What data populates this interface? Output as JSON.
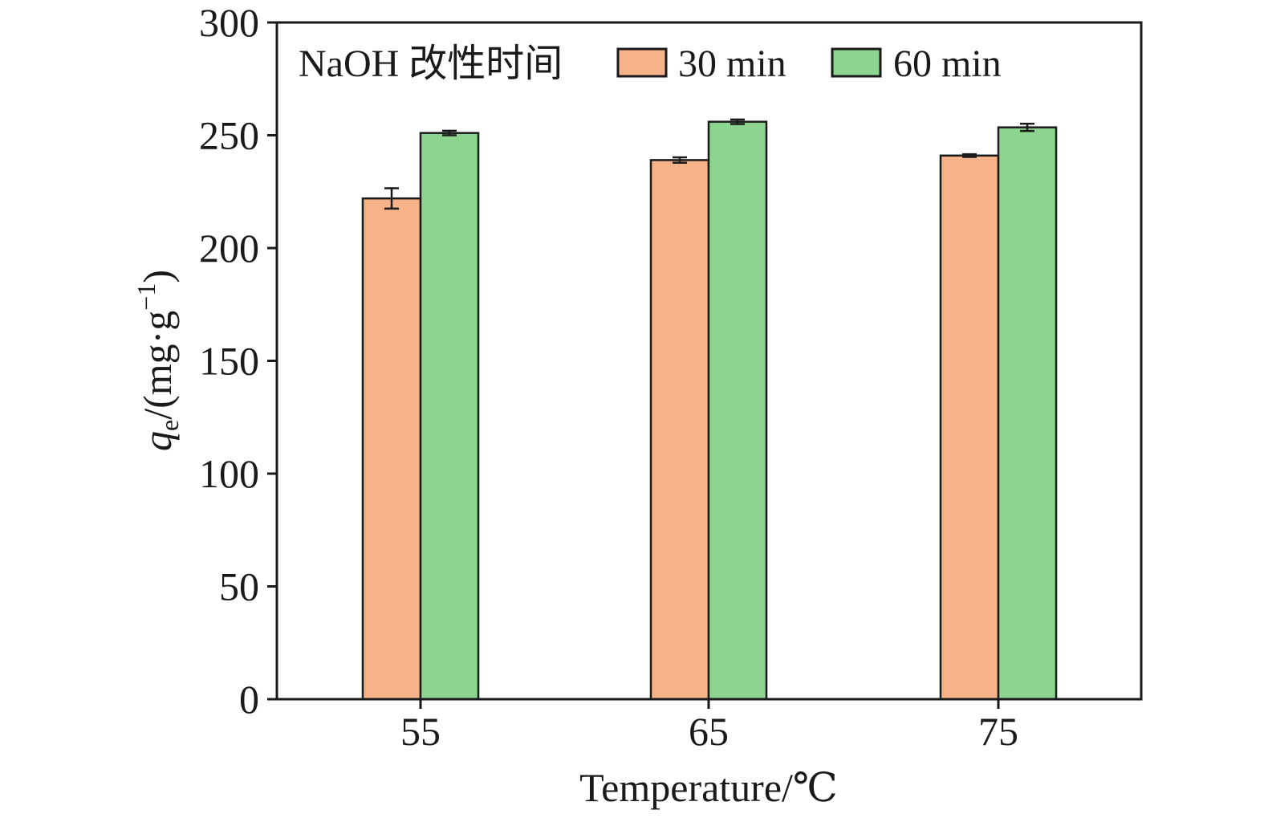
{
  "chart_data": {
    "type": "bar",
    "categories": [
      "55",
      "65",
      "75"
    ],
    "series": [
      {
        "name": "30 min",
        "color": "#F6B389",
        "values": [
          222,
          239,
          241
        ],
        "errors": [
          4.5,
          1.2,
          0.6
        ]
      },
      {
        "name": "60 min",
        "color": "#8DD48E",
        "values": [
          251,
          256,
          253.5
        ],
        "errors": [
          1,
          1,
          1.6
        ]
      }
    ],
    "xlabel": "Temperature/℃",
    "ylabel": {
      "symbol": "q",
      "subscript": "e",
      "unit_open": "/(mg·g",
      "unit_sup": "−1",
      "unit_close": ")"
    },
    "ylim": [
      0,
      300
    ],
    "yticks": [
      "0",
      "50",
      "100",
      "150",
      "200",
      "250",
      "300"
    ],
    "legend": {
      "title": "NaOH 改性时间",
      "position": "top-left"
    },
    "grid": false
  }
}
